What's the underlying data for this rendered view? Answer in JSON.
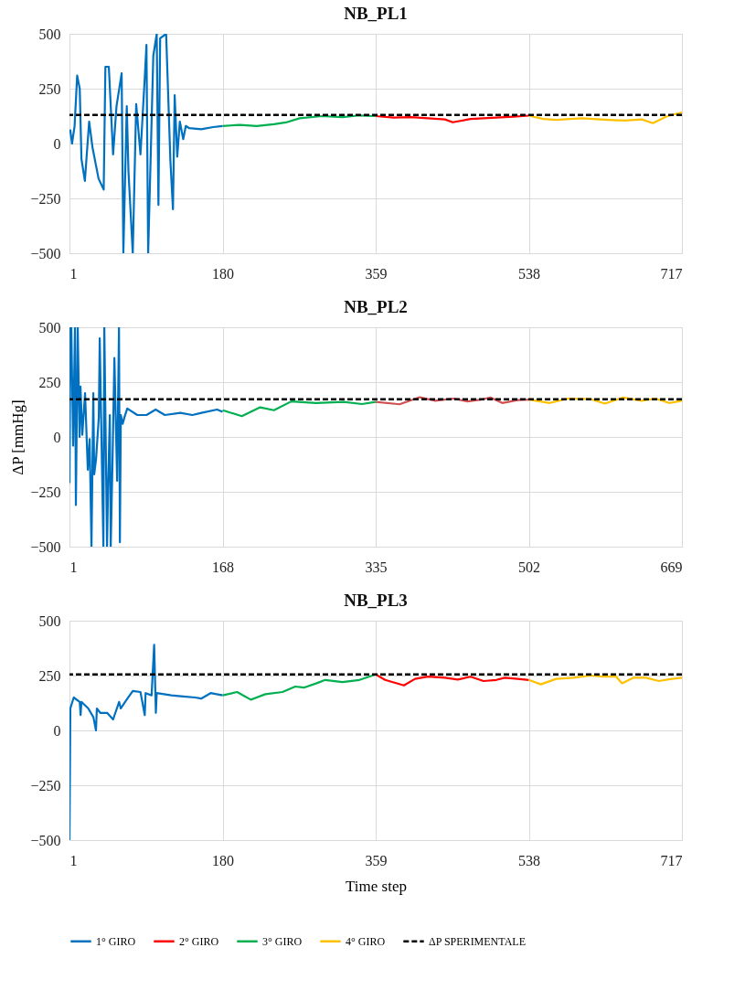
{
  "chart_data": [
    {
      "type": "line",
      "title": "NB_PL1",
      "xlim": [
        1,
        717
      ],
      "xticks": [
        1,
        180,
        359,
        538,
        717
      ],
      "ylim": [
        -500,
        500
      ],
      "yticks": [
        -500,
        -250,
        0,
        250,
        500
      ],
      "grid": true,
      "legend": false,
      "series": [
        {
          "color": "#0070c0",
          "x": [
            1,
            2,
            4,
            7,
            10,
            13,
            15,
            19,
            24,
            28,
            35,
            41,
            43,
            47,
            52,
            56,
            62,
            64,
            68,
            70,
            75,
            79,
            84,
            89,
            91,
            93,
            99,
            103,
            105,
            107,
            114,
            119,
            122,
            124,
            127,
            130,
            134,
            137,
            141,
            155,
            169,
            180
          ],
          "values": [
            50,
            60,
            0,
            80,
            310,
            250,
            -70,
            -170,
            100,
            -20,
            -160,
            -210,
            350,
            350,
            -50,
            170,
            320,
            -500,
            170,
            -130,
            -500,
            180,
            -50,
            300,
            450,
            -500,
            400,
            500,
            -280,
            480,
            500,
            -80,
            -300,
            220,
            -60,
            100,
            20,
            80,
            70,
            65,
            75,
            80
          ]
        },
        {
          "color": "#ff0000",
          "x": [
            359,
            380,
            400,
            420,
            440,
            449,
            470,
            500,
            520,
            538
          ],
          "values": [
            125,
            118,
            120,
            115,
            110,
            97,
            112,
            118,
            122,
            127
          ]
        },
        {
          "color": "#00b050",
          "x": [
            180,
            200,
            220,
            240,
            254,
            270,
            296,
            320,
            340,
            359
          ],
          "values": [
            80,
            85,
            80,
            88,
            96,
            115,
            125,
            120,
            128,
            125
          ]
        },
        {
          "color": "#ffc000",
          "x": [
            538,
            555,
            570,
            600,
            630,
            650,
            670,
            683,
            700,
            717
          ],
          "values": [
            127,
            112,
            108,
            115,
            108,
            105,
            110,
            93,
            125,
            141
          ]
        }
      ],
      "ref_lines": [
        {
          "axis": "y",
          "value": 130,
          "color": "#000000",
          "line_style": "dashed"
        }
      ]
    },
    {
      "type": "line",
      "title": "NB_PL2",
      "ylabel": "ΔP [mmHg]",
      "xlim": [
        1,
        669
      ],
      "xticks": [
        1,
        168,
        335,
        502,
        669
      ],
      "ylim": [
        -500,
        500
      ],
      "yticks": [
        -500,
        -250,
        0,
        250,
        500
      ],
      "grid": true,
      "legend": false,
      "series": [
        {
          "color": "#0070c0",
          "x": [
            1,
            2,
            3,
            5,
            7,
            8,
            10,
            12,
            13,
            15,
            18,
            21,
            23,
            25,
            27,
            28,
            30,
            33,
            34,
            38,
            39,
            42,
            43,
            45,
            46,
            48,
            50,
            53,
            55,
            56,
            57,
            59,
            61,
            64,
            75,
            85,
            95,
            105,
            122,
            135,
            145,
            162,
            168
          ],
          "values": [
            -210,
            500,
            500,
            -40,
            500,
            -310,
            500,
            0,
            230,
            10,
            200,
            -150,
            -10,
            -500,
            200,
            -170,
            -100,
            90,
            450,
            -500,
            500,
            -500,
            -250,
            100,
            -500,
            -100,
            360,
            -200,
            500,
            -480,
            100,
            60,
            90,
            130,
            100,
            100,
            125,
            100,
            110,
            100,
            110,
            125,
            115
          ]
        },
        {
          "color": "#d05050",
          "x": [
            335,
            361,
            383,
            400,
            420,
            435,
            450,
            460,
            473,
            490,
            502
          ],
          "values": [
            160,
            149,
            181,
            165,
            175,
            162,
            170,
            180,
            155,
            168,
            170
          ]
        },
        {
          "color": "#00b050",
          "x": [
            168,
            189,
            209,
            224,
            243,
            270,
            300,
            320,
            335
          ],
          "values": [
            122,
            95,
            135,
            122,
            162,
            155,
            160,
            150,
            160
          ]
        },
        {
          "color": "#ffc000",
          "x": [
            502,
            525,
            545,
            570,
            585,
            605,
            625,
            640,
            655,
            669
          ],
          "values": [
            170,
            155,
            175,
            172,
            152,
            180,
            165,
            175,
            155,
            165
          ]
        }
      ],
      "ref_lines": [
        {
          "axis": "y",
          "value": 172,
          "color": "#000000",
          "line_style": "dashed"
        }
      ]
    },
    {
      "type": "line",
      "title": "NB_PL3",
      "xlabel": "Time step",
      "xlim": [
        1,
        717
      ],
      "xticks": [
        1,
        180,
        359,
        538,
        717
      ],
      "ylim": [
        -500,
        500
      ],
      "yticks": [
        -500,
        -250,
        0,
        250,
        500
      ],
      "grid": true,
      "legend": "bottom",
      "series": [
        {
          "name": "1° GIRO",
          "color": "#0070c0",
          "x": [
            1,
            2,
            6,
            13,
            14,
            15,
            23,
            29,
            32,
            33,
            37,
            45,
            52,
            59,
            61,
            66,
            75,
            84,
            89,
            90,
            97,
            100,
            102,
            103,
            120,
            134,
            148,
            155,
            166,
            180
          ],
          "values": [
            -500,
            100,
            150,
            130,
            70,
            130,
            100,
            60,
            0,
            100,
            80,
            80,
            50,
            130,
            100,
            130,
            180,
            175,
            70,
            170,
            160,
            390,
            80,
            170,
            160,
            155,
            150,
            145,
            170,
            160
          ]
        },
        {
          "name": "2° GIRO",
          "color": "#ff0000",
          "x": [
            359,
            370,
            392,
            405,
            420,
            440,
            455,
            470,
            485,
            500,
            510,
            525,
            538
          ],
          "values": [
            255,
            230,
            205,
            235,
            245,
            240,
            232,
            245,
            225,
            230,
            240,
            235,
            230
          ]
        },
        {
          "name": "3° GIRO",
          "color": "#00b050",
          "x": [
            180,
            197,
            213,
            230,
            250,
            265,
            275,
            290,
            300,
            320,
            340,
            359
          ],
          "values": [
            160,
            175,
            140,
            165,
            175,
            200,
            195,
            215,
            230,
            220,
            230,
            255
          ]
        },
        {
          "name": "4° GIRO",
          "color": "#ffc000",
          "x": [
            538,
            552,
            570,
            590,
            610,
            625,
            640,
            647,
            660,
            675,
            690,
            705,
            717
          ],
          "values": [
            230,
            210,
            235,
            240,
            250,
            245,
            245,
            215,
            240,
            240,
            225,
            235,
            240
          ]
        }
      ],
      "ref_lines": [
        {
          "axis": "y",
          "value": 255,
          "label": "ΔP SPERIMENTALE",
          "color": "#000000",
          "line_style": "dashed"
        }
      ]
    }
  ]
}
